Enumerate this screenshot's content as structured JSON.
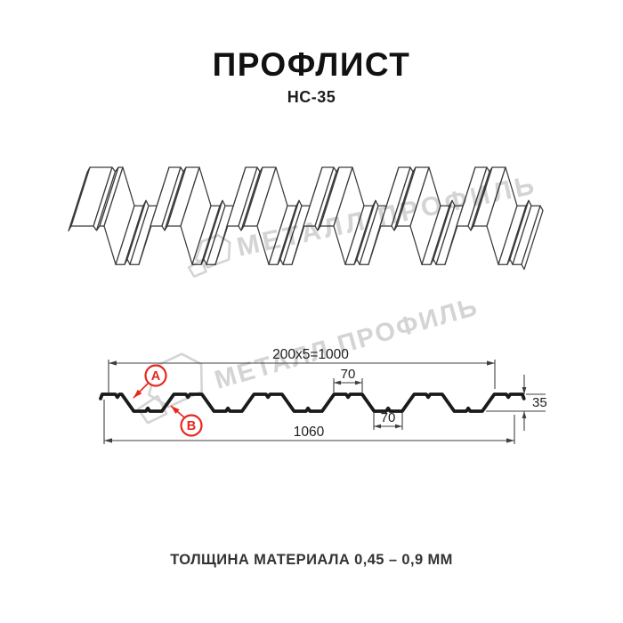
{
  "header": {
    "title": "ПРОФЛИСТ",
    "subtitle": "НС-35"
  },
  "watermark": {
    "text": "МЕТАЛЛ ПРОФИЛЬ",
    "color": "#d4d4d4"
  },
  "cross_section": {
    "dim_top_total": "200x5=1000",
    "dim_crest_width": "70",
    "dim_valley_width": "70",
    "dim_overall_width": "1060",
    "dim_height": "35",
    "label_a": "A",
    "label_b": "B",
    "accent_color": "#e6281e",
    "line_color": "#1a1a1a",
    "dim_line_color": "#3f3f3f"
  },
  "footer": {
    "text": "ТОЛЩИНА МАТЕРИАЛА 0,45 – 0,9 ММ"
  }
}
